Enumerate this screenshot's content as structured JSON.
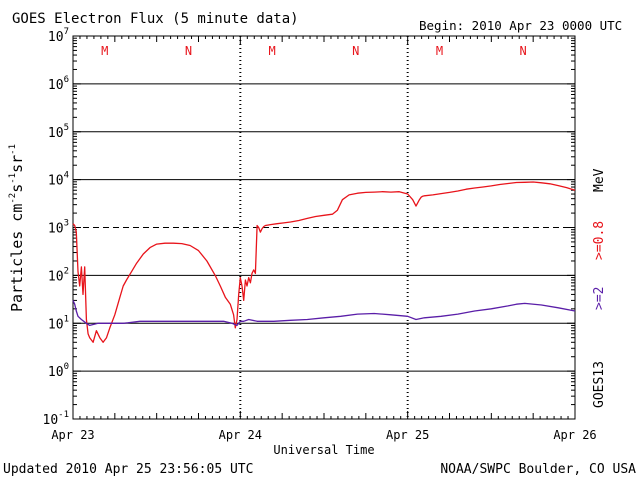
{
  "header": {
    "title": "GOES Electron Flux (5 minute data)",
    "begin": "Begin: 2010 Apr 23 0000 UTC"
  },
  "footer": {
    "updated": "Updated 2010 Apr 25 23:56:05 UTC",
    "credit": "NOAA/SWPC Boulder, CO USA"
  },
  "right_labels": {
    "satellite": "GOES13",
    "energy_2": ">=2",
    "energy_08": ">=0.8",
    "unit": "MeV"
  },
  "colors": {
    "red": "#e8141b",
    "purple": "#5a1ea8",
    "axis": "#000000"
  },
  "chart_data": {
    "type": "line",
    "xlabel": "Universal Time",
    "ylabel_parts": [
      "Particles cm",
      "-2",
      "s",
      "-1",
      "sr",
      "-1"
    ],
    "x_unit": "day offset from 2010 Apr 23 00:00 UTC",
    "xlim": [
      0,
      3
    ],
    "ylim_log10": [
      -1,
      7
    ],
    "yscale": "log",
    "x_ticks": [
      {
        "x": 0,
        "label": "Apr 23"
      },
      {
        "x": 1,
        "label": "Apr 24"
      },
      {
        "x": 2,
        "label": "Apr 25"
      },
      {
        "x": 3,
        "label": "Apr 26"
      }
    ],
    "y_ticks": [
      {
        "exp": 7,
        "label": "10",
        "sup": "7"
      },
      {
        "exp": 6,
        "label": "10",
        "sup": "6"
      },
      {
        "exp": 5,
        "label": "10",
        "sup": "5"
      },
      {
        "exp": 4,
        "label": "10",
        "sup": "4"
      },
      {
        "exp": 3,
        "label": "10",
        "sup": "3"
      },
      {
        "exp": 2,
        "label": "10",
        "sup": "2"
      },
      {
        "exp": 1,
        "label": "10",
        "sup": "1"
      },
      {
        "exp": 0,
        "label": "10",
        "sup": "0"
      },
      {
        "exp": -1,
        "label": "10",
        "sup": "-1"
      }
    ],
    "gridlines_log10": [
      6,
      5,
      4,
      2,
      1,
      0
    ],
    "dashed_threshold_log10": 3,
    "day_markers": [
      {
        "x": 0.19,
        "label": "M"
      },
      {
        "x": 0.69,
        "label": "N"
      },
      {
        "x": 1.19,
        "label": "M"
      },
      {
        "x": 1.69,
        "label": "N"
      },
      {
        "x": 2.19,
        "label": "M"
      },
      {
        "x": 2.69,
        "label": "N"
      }
    ],
    "series": [
      {
        "name": ">=0.8",
        "color": "#e8141b",
        "x": [
          0,
          0.01,
          0.02,
          0.03,
          0.04,
          0.05,
          0.06,
          0.07,
          0.08,
          0.09,
          0.1,
          0.12,
          0.14,
          0.16,
          0.18,
          0.2,
          0.22,
          0.25,
          0.28,
          0.3,
          0.32,
          0.35,
          0.38,
          0.42,
          0.46,
          0.5,
          0.55,
          0.6,
          0.65,
          0.7,
          0.75,
          0.8,
          0.85,
          0.88,
          0.91,
          0.94,
          0.96,
          0.97,
          0.98,
          0.99,
          1.0,
          1.01,
          1.02,
          1.03,
          1.04,
          1.05,
          1.06,
          1.07,
          1.08,
          1.09,
          1.1,
          1.11,
          1.12,
          1.13,
          1.14,
          1.15,
          1.18,
          1.22,
          1.26,
          1.3,
          1.35,
          1.4,
          1.45,
          1.5,
          1.55,
          1.58,
          1.61,
          1.65,
          1.7,
          1.75,
          1.8,
          1.85,
          1.9,
          1.95,
          2.0,
          2.03,
          2.05,
          2.07,
          2.08,
          2.09,
          2.1,
          2.15,
          2.2,
          2.25,
          2.3,
          2.35,
          2.4,
          2.45,
          2.5,
          2.55,
          2.6,
          2.65,
          2.7,
          2.75,
          2.8,
          2.85,
          2.9,
          2.95,
          3.0
        ],
        "y": [
          1200,
          1100,
          800,
          120,
          60,
          150,
          40,
          150,
          12,
          6,
          5,
          4,
          7,
          5,
          4,
          5,
          8,
          15,
          35,
          60,
          80,
          120,
          180,
          280,
          380,
          450,
          470,
          470,
          460,
          420,
          330,
          200,
          100,
          60,
          35,
          25,
          15,
          8,
          12,
          40,
          90,
          60,
          30,
          80,
          60,
          90,
          70,
          110,
          130,
          110,
          1100,
          1000,
          800,
          950,
          1050,
          1100,
          1150,
          1200,
          1250,
          1300,
          1400,
          1550,
          1700,
          1800,
          1900,
          2300,
          3800,
          4800,
          5200,
          5400,
          5500,
          5600,
          5500,
          5600,
          5000,
          3800,
          2800,
          3800,
          4300,
          4500,
          4600,
          4800,
          5100,
          5400,
          5800,
          6300,
          6700,
          7000,
          7400,
          7900,
          8300,
          8700,
          8800,
          8900,
          8600,
          8200,
          7500,
          6800,
          6000
        ]
      },
      {
        "name": ">=2",
        "color": "#5a1ea8",
        "x": [
          0,
          0.01,
          0.02,
          0.03,
          0.05,
          0.08,
          0.1,
          0.15,
          0.2,
          0.3,
          0.4,
          0.5,
          0.6,
          0.7,
          0.8,
          0.9,
          0.95,
          0.98,
          1.0,
          1.02,
          1.05,
          1.1,
          1.2,
          1.3,
          1.4,
          1.5,
          1.6,
          1.7,
          1.8,
          1.9,
          2.0,
          2.05,
          2.1,
          2.2,
          2.3,
          2.4,
          2.5,
          2.6,
          2.65,
          2.7,
          2.8,
          2.9,
          3.0
        ],
        "y": [
          30,
          25,
          18,
          14,
          12,
          10,
          9,
          10,
          10,
          10,
          11,
          11,
          11,
          11,
          11,
          11,
          10,
          9,
          11,
          11,
          12,
          11,
          11,
          11.5,
          12,
          13,
          14,
          15.5,
          16,
          15,
          14,
          12,
          13,
          14,
          15.5,
          18,
          20,
          23,
          25,
          26,
          24,
          21,
          18
        ]
      }
    ]
  }
}
